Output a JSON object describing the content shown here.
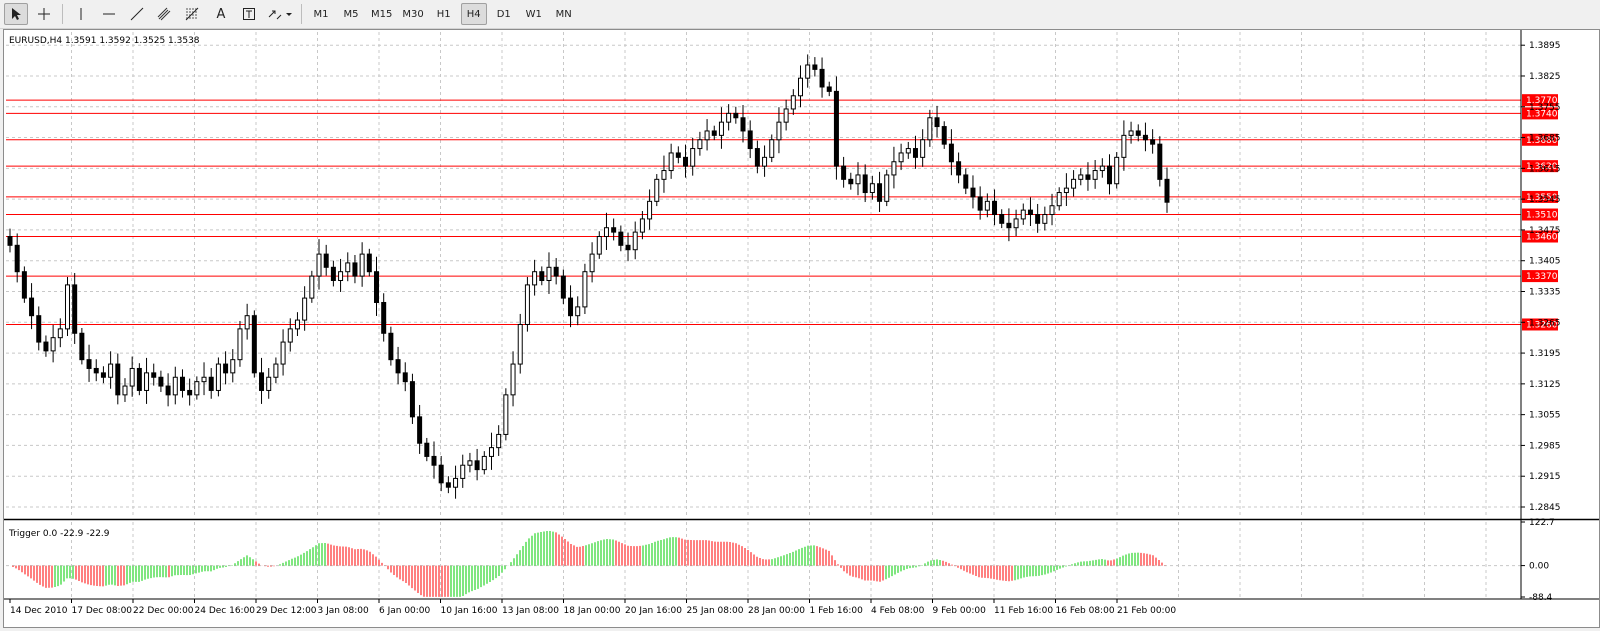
{
  "toolbar": {
    "timeframes": [
      "M1",
      "M5",
      "M15",
      "M30",
      "H1",
      "H4",
      "D1",
      "W1",
      "MN"
    ],
    "active_timeframe": "H4",
    "text_tool_label": "A"
  },
  "chart_data": {
    "type": "candlestick",
    "symbol": "EURUSD,H4",
    "ohlc_header": [
      "1.3591",
      "1.3592",
      "1.3525",
      "1.3538"
    ],
    "y_ticks": [
      "1.3895",
      "1.3825",
      "1.3755",
      "1.3685",
      "1.3615",
      "1.3545",
      "1.3475",
      "1.3405",
      "1.3335",
      "1.3265",
      "1.3195",
      "1.3125",
      "1.3055",
      "1.2985",
      "1.2915",
      "1.2845"
    ],
    "ylim": [
      1.282,
      1.3925
    ],
    "x_labels": [
      "14 Dec 2010",
      "17 Dec 08:00",
      "22 Dec 00:00",
      "24 Dec 16:00",
      "29 Dec 12:00",
      "3 Jan 08:00",
      "6 Jan 00:00",
      "10 Jan 16:00",
      "13 Jan 08:00",
      "18 Jan 00:00",
      "20 Jan 16:00",
      "25 Jan 08:00",
      "28 Jan 00:00",
      "1 Feb 16:00",
      "4 Feb 08:00",
      "9 Feb 00:00",
      "11 Feb 16:00",
      "16 Feb 08:00",
      "21 Feb 00:00"
    ],
    "hlines": [
      "1.3770",
      "1.3740",
      "1.3680",
      "1.3620",
      "1.3550",
      "1.3510",
      "1.3460",
      "1.3370",
      "1.3260"
    ],
    "hline_color": "#ff0000",
    "closes": [
      1.344,
      1.338,
      1.332,
      1.328,
      1.322,
      1.32,
      1.323,
      1.325,
      1.335,
      1.324,
      1.318,
      1.316,
      1.315,
      1.314,
      1.317,
      1.31,
      1.312,
      1.316,
      1.311,
      1.315,
      1.314,
      1.312,
      1.31,
      1.314,
      1.311,
      1.31,
      1.313,
      1.314,
      1.311,
      1.317,
      1.315,
      1.318,
      1.325,
      1.328,
      1.315,
      1.311,
      1.314,
      1.317,
      1.322,
      1.325,
      1.327,
      1.332,
      1.337,
      1.342,
      1.339,
      1.336,
      1.338,
      1.34,
      1.337,
      1.342,
      1.338,
      1.331,
      1.324,
      1.318,
      1.315,
      1.313,
      1.305,
      1.299,
      1.296,
      1.294,
      1.29,
      1.289,
      1.291,
      1.294,
      1.295,
      1.293,
      1.296,
      1.298,
      1.301,
      1.31,
      1.317,
      1.326,
      1.335,
      1.338,
      1.336,
      1.339,
      1.337,
      1.332,
      1.328,
      1.33,
      1.338,
      1.342,
      1.346,
      1.348,
      1.347,
      1.344,
      1.343,
      1.347,
      1.35,
      1.354,
      1.359,
      1.361,
      1.365,
      1.364,
      1.362,
      1.366,
      1.368,
      1.37,
      1.369,
      1.372,
      1.374,
      1.373,
      1.37,
      1.366,
      1.362,
      1.364,
      1.368,
      1.372,
      1.375,
      1.378,
      1.382,
      1.385,
      1.384,
      1.38,
      1.379,
      1.362,
      1.359,
      1.358,
      1.36,
      1.356,
      1.358,
      1.354,
      1.36,
      1.363,
      1.365,
      1.366,
      1.364,
      1.368,
      1.373,
      1.371,
      1.367,
      1.363,
      1.36,
      1.357,
      1.355,
      1.352,
      1.354,
      1.351,
      1.349,
      1.348,
      1.35,
      1.352,
      1.351,
      1.349,
      1.351,
      1.353,
      1.356,
      1.357,
      1.359,
      1.36,
      1.359,
      1.361,
      1.362,
      1.358,
      1.364,
      1.369,
      1.37,
      1.369,
      1.368,
      1.367,
      1.359,
      1.3538
    ],
    "indicator": {
      "name": "Trigger",
      "header": [
        "0.0",
        "-22.9",
        "-22.9"
      ],
      "y_ticks": [
        "122.7",
        "0.00",
        "-88.4"
      ],
      "ylim": [
        -88.4,
        122.7
      ],
      "up_color": "#00cc00",
      "down_color": "#ff0000"
    }
  }
}
